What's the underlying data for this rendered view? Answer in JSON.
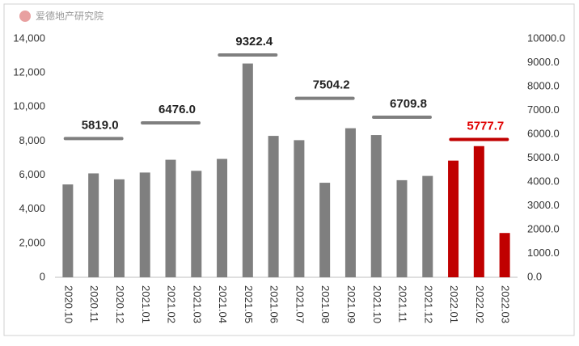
{
  "source": "爱德地产研究院",
  "chart_data": {
    "type": "bar",
    "categories": [
      "2020.10",
      "2020.11",
      "2020.12",
      "2021.01",
      "2021.02",
      "2021.03",
      "2021.04",
      "2021.05",
      "2021.06",
      "2021.07",
      "2021.08",
      "2021.09",
      "2021.10",
      "2021.11",
      "2021.12",
      "2022.01",
      "2022.02",
      "2022.03"
    ],
    "values": [
      5450,
      6100,
      5750,
      6150,
      6900,
      6250,
      6950,
      12550,
      8300,
      8050,
      5550,
      8750,
      8350,
      5700,
      5950,
      6850,
      7700,
      2600
    ],
    "colors": [
      "#7f7f7f",
      "#7f7f7f",
      "#7f7f7f",
      "#7f7f7f",
      "#7f7f7f",
      "#7f7f7f",
      "#7f7f7f",
      "#7f7f7f",
      "#7f7f7f",
      "#7f7f7f",
      "#7f7f7f",
      "#7f7f7f",
      "#7f7f7f",
      "#7f7f7f",
      "#7f7f7f",
      "#c00000",
      "#c00000",
      "#c00000"
    ],
    "ylim": [
      0,
      14000
    ],
    "yticks": [
      0,
      {
        "value": 2000,
        "label": "2,000"
      },
      {
        "value": 4000,
        "label": "4,000"
      },
      {
        "value": 6000,
        "label": "6,000"
      },
      {
        "value": 8000,
        "label": "8,000"
      },
      {
        "value": 10000,
        "label": "10,000"
      },
      {
        "value": 12000,
        "label": "12,000"
      },
      {
        "value": 14000,
        "label": "14,000"
      }
    ],
    "y2lim": [
      0,
      10000
    ],
    "y2ticks": [
      {
        "value": 0,
        "label": "0.0"
      },
      {
        "value": 1000,
        "label": "1000.0"
      },
      {
        "value": 2000,
        "label": "2000.0"
      },
      {
        "value": 3000,
        "label": "3000.0"
      },
      {
        "value": 4000,
        "label": "4000.0"
      },
      {
        "value": 5000,
        "label": "5000.0"
      },
      {
        "value": 6000,
        "label": "6000.0"
      },
      {
        "value": 7000,
        "label": "7000.0"
      },
      {
        "value": 8000,
        "label": "8000.0"
      },
      {
        "value": 9000,
        "label": "9000.0"
      },
      {
        "value": 10000,
        "label": "10000.0"
      }
    ],
    "averages": {
      "axis": "y2",
      "values": [
        5819.0,
        6476.0,
        9322.4,
        7504.2,
        6709.8,
        5777.7
      ],
      "value_labels": [
        "5819.0",
        "6476.0",
        "9322.4",
        "7504.2",
        "6709.8",
        "5777.7"
      ],
      "colors": [
        "#7f7f7f",
        "#7f7f7f",
        "#7f7f7f",
        "#7f7f7f",
        "#7f7f7f",
        "#c00000"
      ],
      "label_colors": [
        "#222222",
        "#222222",
        "#222222",
        "#222222",
        "#222222",
        "#e00000"
      ]
    }
  }
}
